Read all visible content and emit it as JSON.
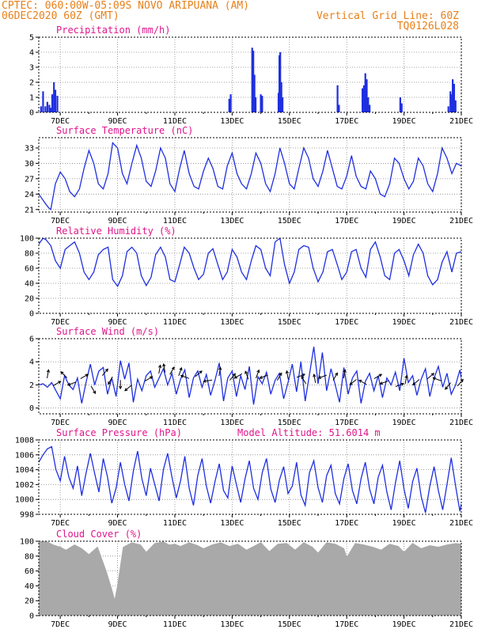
{
  "header": {
    "line1_left": "CPTEC:  060:00W-05:09S  NOVO ARIPUANA (AM)",
    "line2_left": "06DEC2020 60Z (GMT)",
    "line2_right": "Vertical Grid Line: 60Z",
    "line3_right": "TQ0126L028"
  },
  "colors": {
    "header": "#e8801a",
    "title": "#e0168c",
    "series": "#1f2fe0",
    "cloud": "#a9a9a9",
    "grid": "#888888"
  },
  "x_axis": {
    "labels": [
      "7DEC",
      "9DEC",
      "11DEC",
      "13DEC",
      "15DEC",
      "17DEC",
      "19DEC",
      "21DEC"
    ],
    "label_days": [
      7,
      9,
      11,
      13,
      15,
      17,
      19,
      21
    ],
    "range_days": [
      6.25,
      21.0
    ]
  },
  "chart_data": [
    {
      "id": "precip",
      "type": "bar",
      "title": "Precipitation (mm/h)",
      "ylim": [
        0,
        5
      ],
      "yticks": [
        0,
        1,
        2,
        3,
        4,
        5
      ],
      "grid": true,
      "x_days": [
        6.33,
        6.4,
        6.48,
        6.55,
        6.62,
        6.67,
        6.72,
        6.78,
        6.83,
        6.9,
        12.9,
        12.95,
        13.7,
        13.74,
        13.78,
        13.82,
        14.0,
        14.05,
        14.62,
        14.65,
        14.68,
        14.72,
        14.76,
        16.68,
        16.73,
        17.55,
        17.6,
        17.65,
        17.7,
        17.75,
        17.8,
        18.87,
        18.92,
        20.55,
        20.62,
        20.66,
        20.7,
        20.75,
        20.8
      ],
      "values": [
        0.4,
        1.4,
        0.4,
        0.7,
        0.5,
        0.3,
        1.2,
        2.0,
        1.5,
        1.1,
        0.9,
        1.2,
        4.3,
        4.1,
        2.5,
        1.0,
        1.2,
        1.1,
        1.3,
        3.8,
        4.0,
        2.0,
        1.0,
        1.8,
        0.5,
        1.6,
        1.8,
        2.6,
        2.2,
        1.0,
        0.5,
        1.0,
        0.6,
        0.4,
        1.4,
        1.2,
        2.2,
        1.9,
        0.8
      ]
    },
    {
      "id": "temp",
      "type": "line",
      "title": "Surface Temperature (nC)",
      "ylim": [
        20.5,
        35
      ],
      "yticks": [
        21,
        24,
        27,
        30,
        33
      ],
      "grid": true,
      "x_days": [
        6.25,
        6.5,
        6.6,
        6.67,
        6.83,
        7.0,
        7.17,
        7.33,
        7.5,
        7.67,
        7.83,
        8.0,
        8.17,
        8.33,
        8.5,
        8.67,
        8.83,
        9.0,
        9.17,
        9.33,
        9.5,
        9.67,
        9.83,
        10.0,
        10.17,
        10.33,
        10.5,
        10.67,
        10.83,
        11.0,
        11.17,
        11.33,
        11.5,
        11.67,
        11.83,
        12.0,
        12.17,
        12.33,
        12.5,
        12.67,
        12.83,
        13.0,
        13.17,
        13.33,
        13.5,
        13.67,
        13.83,
        14.0,
        14.17,
        14.33,
        14.5,
        14.67,
        14.83,
        15.0,
        15.17,
        15.33,
        15.5,
        15.67,
        15.83,
        16.0,
        16.17,
        16.33,
        16.5,
        16.67,
        16.83,
        17.0,
        17.17,
        17.33,
        17.5,
        17.67,
        17.83,
        18.0,
        18.17,
        18.33,
        18.5,
        18.67,
        18.83,
        19.0,
        19.17,
        19.33,
        19.5,
        19.67,
        19.83,
        20.0,
        20.17,
        20.33,
        20.5,
        20.67,
        20.83,
        21.0
      ],
      "values": [
        24,
        22,
        21.3,
        21,
        26,
        28.3,
        27,
        24.5,
        23.5,
        25,
        29,
        32.5,
        30,
        26,
        25,
        28,
        34,
        33,
        28,
        26,
        30,
        33.5,
        31,
        26.5,
        25.5,
        28.5,
        33,
        31,
        26,
        24.5,
        29,
        32.5,
        28,
        25.5,
        25,
        28.5,
        31,
        29,
        25.5,
        25,
        29.5,
        32,
        28,
        26,
        25,
        28,
        32,
        30,
        26,
        24.5,
        28,
        33,
        30,
        26,
        25,
        29,
        33,
        31,
        27,
        25.5,
        28.5,
        32.5,
        29,
        25.5,
        25,
        27.5,
        31.5,
        27.5,
        25.5,
        25,
        28.5,
        27,
        24,
        23.5,
        26,
        31,
        30,
        27,
        25,
        26.5,
        31,
        29.5,
        26,
        24.5,
        28,
        33,
        31,
        28,
        30,
        29.5
      ]
    },
    {
      "id": "rh",
      "type": "line",
      "title": "Relative Humidity (%)",
      "ylim": [
        0,
        100
      ],
      "yticks": [
        0,
        20,
        40,
        60,
        80,
        100
      ],
      "grid": true,
      "x_days": [
        6.25,
        6.4,
        6.5,
        6.67,
        6.83,
        7.0,
        7.17,
        7.33,
        7.5,
        7.67,
        7.83,
        8.0,
        8.17,
        8.33,
        8.5,
        8.67,
        8.83,
        9.0,
        9.17,
        9.33,
        9.5,
        9.67,
        9.83,
        10.0,
        10.17,
        10.33,
        10.5,
        10.67,
        10.83,
        11.0,
        11.17,
        11.33,
        11.5,
        11.67,
        11.83,
        12.0,
        12.17,
        12.33,
        12.5,
        12.67,
        12.83,
        13.0,
        13.17,
        13.33,
        13.5,
        13.67,
        13.83,
        14.0,
        14.17,
        14.33,
        14.5,
        14.67,
        14.83,
        15.0,
        15.17,
        15.33,
        15.5,
        15.67,
        15.83,
        16.0,
        16.17,
        16.33,
        16.5,
        16.67,
        16.83,
        17.0,
        17.17,
        17.33,
        17.5,
        17.67,
        17.83,
        18.0,
        18.17,
        18.33,
        18.5,
        18.67,
        18.83,
        19.0,
        19.17,
        19.33,
        19.5,
        19.67,
        19.83,
        20.0,
        20.17,
        20.33,
        20.5,
        20.67,
        20.83,
        21.0
      ],
      "values": [
        92,
        100,
        98,
        90,
        70,
        60,
        85,
        90,
        95,
        80,
        55,
        45,
        55,
        78,
        85,
        88,
        45,
        36,
        50,
        82,
        88,
        80,
        50,
        37,
        48,
        78,
        88,
        75,
        45,
        42,
        65,
        88,
        80,
        60,
        45,
        52,
        80,
        86,
        65,
        45,
        55,
        85,
        75,
        55,
        45,
        70,
        90,
        85,
        60,
        50,
        95,
        100,
        65,
        40,
        55,
        85,
        90,
        88,
        60,
        42,
        55,
        82,
        85,
        65,
        45,
        55,
        82,
        85,
        60,
        48,
        85,
        95,
        75,
        50,
        45,
        80,
        85,
        70,
        50,
        78,
        92,
        80,
        50,
        38,
        45,
        68,
        82,
        55,
        80,
        82
      ]
    },
    {
      "id": "wind",
      "type": "line",
      "title": "Surface Wind (m/s)",
      "ylim": [
        -0.5,
        6
      ],
      "yticks": [
        0,
        2,
        4,
        6
      ],
      "grid": true,
      "x_days": [
        6.25,
        6.4,
        6.55,
        6.7,
        6.85,
        7.0,
        7.15,
        7.3,
        7.45,
        7.6,
        7.75,
        7.9,
        8.05,
        8.2,
        8.35,
        8.5,
        8.65,
        8.8,
        8.95,
        9.1,
        9.25,
        9.4,
        9.55,
        9.7,
        9.85,
        10.0,
        10.15,
        10.3,
        10.45,
        10.6,
        10.75,
        10.9,
        11.05,
        11.2,
        11.35,
        11.5,
        11.65,
        11.8,
        11.95,
        12.1,
        12.25,
        12.4,
        12.55,
        12.7,
        12.85,
        13.0,
        13.15,
        13.3,
        13.45,
        13.6,
        13.75,
        13.9,
        14.05,
        14.2,
        14.35,
        14.5,
        14.65,
        14.8,
        14.95,
        15.1,
        15.25,
        15.4,
        15.55,
        15.7,
        15.85,
        16.0,
        16.15,
        16.3,
        16.45,
        16.6,
        16.75,
        16.9,
        17.05,
        17.2,
        17.35,
        17.5,
        17.65,
        17.8,
        17.95,
        18.1,
        18.25,
        18.4,
        18.55,
        18.7,
        18.85,
        19.0,
        19.15,
        19.3,
        19.45,
        19.6,
        19.75,
        19.9,
        20.05,
        20.2,
        20.35,
        20.5,
        20.65,
        20.8,
        20.95,
        21.0
      ],
      "values": [
        2.0,
        2.1,
        1.8,
        2.2,
        1.5,
        0.8,
        2.8,
        2.0,
        1.6,
        2.6,
        0.4,
        2.2,
        3.8,
        2.0,
        3.2,
        3.5,
        1.2,
        2.6,
        1.0,
        4.1,
        2.5,
        3.9,
        0.5,
        2.5,
        1.5,
        2.8,
        3.2,
        1.8,
        2.6,
        3.4,
        2.0,
        3.0,
        1.2,
        2.5,
        3.3,
        0.9,
        2.6,
        3.2,
        1.8,
        2.9,
        1.1,
        2.4,
        3.9,
        0.6,
        2.6,
        3.2,
        1.0,
        2.8,
        1.6,
        3.6,
        0.3,
        2.7,
        2.1,
        3.1,
        1.2,
        2.4,
        3.0,
        0.8,
        2.2,
        3.8,
        1.4,
        4.0,
        0.6,
        2.9,
        5.3,
        2.1,
        4.8,
        1.5,
        3.4,
        2.0,
        0.5,
        3.5,
        1.2,
        2.6,
        3.2,
        0.4,
        2.3,
        3.0,
        1.5,
        2.8,
        0.9,
        2.6,
        2.0,
        3.1,
        1.5,
        4.3,
        2.2,
        2.8,
        1.1,
        2.5,
        3.4,
        1.0,
        2.6,
        3.6,
        1.8,
        3.0,
        1.2,
        2.0,
        3.3,
        2.6
      ],
      "arrows_x_days": [
        6.55,
        6.8,
        7.2,
        7.5,
        7.75,
        8.1,
        8.5,
        8.8,
        9.1,
        9.45,
        10.0,
        10.45,
        10.65,
        10.85,
        11.15,
        11.45,
        11.75,
        12.25,
        12.55,
        12.95,
        13.3,
        13.55,
        13.85,
        14.2,
        14.6,
        14.95,
        15.3,
        15.55,
        15.9,
        16.25,
        16.55,
        16.9,
        17.3,
        17.65,
        18.0,
        18.4,
        18.75,
        19.05,
        19.5,
        19.85,
        20.25,
        20.6,
        20.9
      ],
      "arrows_y": [
        2.7,
        2.0,
        2.7,
        2.2,
        2.6,
        1.8,
        2.9,
        2.6,
        2.3,
        1.9,
        2.4,
        3.1,
        3.2,
        3.0,
        2.9,
        2.6,
        2.8,
        2.4,
        2.9,
        2.5,
        2.9,
        2.6,
        2.7,
        2.8,
        2.5,
        2.6,
        2.7,
        2.2,
        2.3,
        2.8,
        2.5,
        2.7,
        2.4,
        2.1,
        2.6,
        2.3,
        1.9,
        2.2,
        2.4,
        2.6,
        2.4,
        2.1,
        2.0
      ],
      "arrows_dir_deg": [
        80,
        30,
        135,
        200,
        30,
        300,
        50,
        240,
        270,
        220,
        30,
        80,
        100,
        60,
        70,
        160,
        40,
        190,
        80,
        50,
        210,
        110,
        70,
        200,
        60,
        100,
        20,
        120,
        100,
        200,
        60,
        80,
        220,
        150,
        30,
        200,
        20,
        80,
        220,
        40,
        160,
        230,
        50
      ]
    },
    {
      "id": "pressure",
      "type": "line",
      "title": "Surface Pressure (hPa)",
      "subtitle": "Model Altitude: 51.6014 m",
      "ylim": [
        998,
        1008
      ],
      "yticks": [
        998,
        1000,
        1002,
        1004,
        1006,
        1008
      ],
      "grid": true,
      "x_days": [
        6.25,
        6.4,
        6.55,
        6.7,
        6.85,
        7.0,
        7.15,
        7.3,
        7.45,
        7.6,
        7.75,
        7.9,
        8.05,
        8.2,
        8.35,
        8.5,
        8.65,
        8.8,
        8.95,
        9.1,
        9.25,
        9.4,
        9.55,
        9.7,
        9.85,
        10.0,
        10.15,
        10.3,
        10.45,
        10.6,
        10.75,
        10.9,
        11.05,
        11.2,
        11.35,
        11.5,
        11.65,
        11.8,
        11.95,
        12.1,
        12.25,
        12.4,
        12.55,
        12.7,
        12.85,
        13.0,
        13.15,
        13.3,
        13.45,
        13.6,
        13.75,
        13.9,
        14.05,
        14.2,
        14.35,
        14.5,
        14.65,
        14.8,
        14.95,
        15.1,
        15.25,
        15.4,
        15.55,
        15.7,
        15.85,
        16.0,
        16.15,
        16.3,
        16.45,
        16.6,
        16.75,
        16.9,
        17.05,
        17.2,
        17.35,
        17.5,
        17.65,
        17.8,
        17.95,
        18.1,
        18.25,
        18.4,
        18.55,
        18.7,
        18.85,
        19.0,
        19.15,
        19.3,
        19.45,
        19.6,
        19.75,
        19.9,
        20.05,
        20.2,
        20.35,
        20.5,
        20.65,
        20.8,
        20.95,
        21.0
      ],
      "values": [
        1005,
        1006,
        1006.8,
        1007.1,
        1004,
        1002.5,
        1005.8,
        1003,
        1001.5,
        1004.5,
        1000.5,
        1003.5,
        1006.2,
        1003.5,
        1001,
        1005.5,
        1003,
        999.5,
        1001.5,
        1005,
        1002,
        999.8,
        1003.8,
        1006.5,
        1002.8,
        1000.5,
        1004.2,
        1002,
        999.8,
        1004,
        1006.2,
        1003,
        1000.2,
        1002.5,
        1005.8,
        1001.5,
        999.2,
        1003.2,
        1005.5,
        1001.8,
        999.5,
        1002.4,
        1004.8,
        1001.2,
        1000.2,
        1004.5,
        1002,
        999.6,
        1002.8,
        1005.2,
        1001.5,
        1000,
        1003.6,
        1005.5,
        1001.4,
        999.6,
        1002.6,
        1004.4,
        1000.8,
        1001.8,
        1005,
        1000.6,
        999.2,
        1003.6,
        1005.2,
        1001.6,
        999.6,
        1003.2,
        1004.6,
        1000.8,
        999.4,
        1002.8,
        1004.8,
        1001.2,
        999.4,
        1002.8,
        1005,
        1001.4,
        999.4,
        1003,
        1004.6,
        1001,
        998.6,
        1002.2,
        1005.2,
        1001.4,
        998.8,
        1002.4,
        1004.2,
        1000.4,
        998.2,
        1001.8,
        1004.4,
        1001.2,
        998.6,
        1002,
        1005.6,
        1001.8,
        998.4,
        999.4
      ]
    },
    {
      "id": "cloud",
      "type": "area",
      "title": "Cloud Cover (%)",
      "ylim": [
        0,
        100
      ],
      "yticks": [
        0,
        20,
        40,
        60,
        80,
        100
      ],
      "grid": true,
      "x_days": [
        6.25,
        6.5,
        6.75,
        7.0,
        7.2,
        7.5,
        7.75,
        8.0,
        8.3,
        8.6,
        8.8,
        8.9,
        9.0,
        9.2,
        9.5,
        9.8,
        10.0,
        10.3,
        10.6,
        10.8,
        11.0,
        11.2,
        11.5,
        11.8,
        12.0,
        12.3,
        12.6,
        12.9,
        13.2,
        13.5,
        13.8,
        14.0,
        14.3,
        14.6,
        14.9,
        15.2,
        15.5,
        15.8,
        16.0,
        16.3,
        16.6,
        16.9,
        17.0,
        17.3,
        17.6,
        17.9,
        18.2,
        18.5,
        18.8,
        19.0,
        19.3,
        19.6,
        19.9,
        20.2,
        20.5,
        20.8,
        21.0
      ],
      "values": [
        100,
        100,
        95,
        92,
        88,
        95,
        90,
        82,
        92,
        60,
        35,
        20,
        40,
        92,
        98,
        95,
        85,
        97,
        99,
        95,
        96,
        93,
        98,
        94,
        90,
        95,
        98,
        93,
        96,
        88,
        94,
        98,
        86,
        96,
        97,
        88,
        98,
        92,
        84,
        98,
        96,
        90,
        78,
        97,
        95,
        92,
        88,
        96,
        93,
        85,
        97,
        90,
        94,
        92,
        95,
        97,
        96
      ]
    }
  ]
}
